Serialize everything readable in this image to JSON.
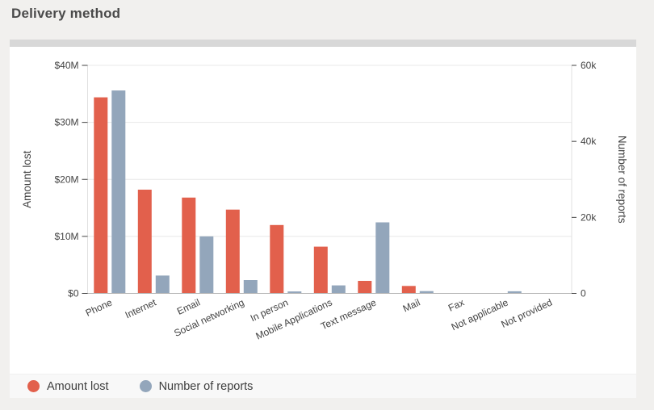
{
  "page": {
    "title": "Delivery method"
  },
  "legend": {
    "items": [
      {
        "label": "Amount lost"
      },
      {
        "label": "Number of reports"
      }
    ]
  },
  "colors": {
    "amount_lost": "#e2604c",
    "number_of_reports": "#93a6bb",
    "grid_line": "#e8e8e8",
    "bottom_axis_line": "#b3b3b3",
    "plot_boundary_line": "#e0e0e0",
    "tick_text": "#424242",
    "page_title_text": "#4a4a4a",
    "legend_text": "#3d3d3d",
    "page_bg": "#f1f0ee",
    "card_bg": "#ffffff",
    "handle_bg": "#d8d8d8",
    "legend_bg": "#f8f8f8"
  },
  "chart_data": {
    "type": "bar",
    "title": "Delivery method",
    "categories": [
      "Phone",
      "Internet",
      "Email",
      "Social networking",
      "In person",
      "Mobile Applications",
      "Text message",
      "Mail",
      "Fax",
      "Not applicable",
      "Not provided"
    ],
    "series": [
      {
        "name": "Amount lost",
        "axis": "left",
        "unit": "million dollars",
        "color": "#e2604c",
        "values": [
          34.4,
          18.2,
          16.8,
          14.7,
          12.0,
          8.2,
          2.2,
          1.3,
          0.05,
          0,
          0.05
        ]
      },
      {
        "name": "Number of reports",
        "axis": "right",
        "unit": "thousand reports",
        "color": "#93a6bb",
        "values": [
          53.4,
          4.7,
          15.0,
          3.5,
          0.5,
          2.1,
          18.7,
          0.6,
          0.1,
          0.55,
          0
        ]
      }
    ],
    "left_axis": {
      "title": "Amount lost",
      "min": 0,
      "max": 40,
      "ticks": [
        {
          "v": 0,
          "label": "$0"
        },
        {
          "v": 10,
          "label": "$10M"
        },
        {
          "v": 20,
          "label": "$20M"
        },
        {
          "v": 30,
          "label": "$30M"
        },
        {
          "v": 40,
          "label": "$40M"
        }
      ]
    },
    "right_axis": {
      "title": "Number of reports",
      "min": 0,
      "max": 60,
      "ticks": [
        {
          "v": 0,
          "label": "0"
        },
        {
          "v": 20,
          "label": "20k"
        },
        {
          "v": 40,
          "label": "40k"
        },
        {
          "v": 60,
          "label": "60k"
        }
      ]
    },
    "grid": true,
    "legend_position": "bottom",
    "x_label_rotation_deg": -25
  }
}
